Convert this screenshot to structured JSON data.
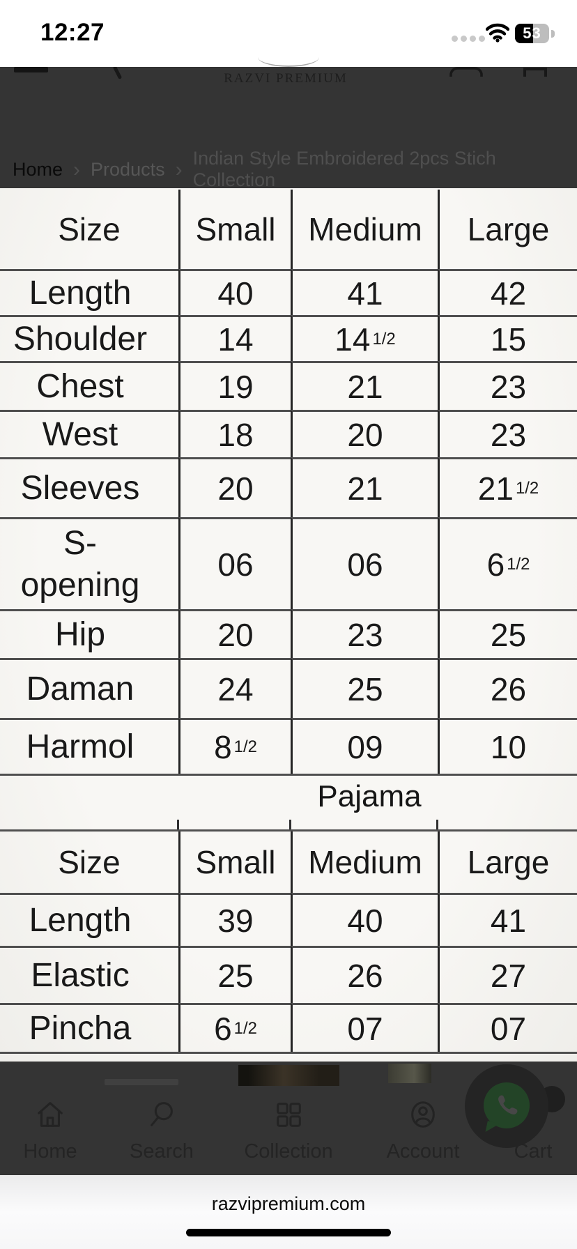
{
  "status_bar": {
    "time": "12:27",
    "battery_percent": "53",
    "cellular_icon": "signal-dots",
    "wifi_icon": "wifi"
  },
  "header": {
    "brand": "RAZVI PREMIUM",
    "menu_icon": "hamburger-menu",
    "search_icon": "search",
    "bag_icon": "shopping-bag",
    "cart_icon": "cart-box"
  },
  "breadcrumb": {
    "separator": "›",
    "items": [
      "Home",
      "Products",
      "Indian Style Embroidered 2pcs Stich Collection"
    ]
  },
  "size_chart": {
    "tables": [
      {
        "name": "kurta-size-chart",
        "columns": [
          "Size",
          "Small",
          "Medium",
          "Large"
        ],
        "rows": [
          {
            "label": "Length",
            "values": [
              "40",
              "41",
              "42"
            ]
          },
          {
            "label": "Shoulder",
            "values": [
              "14",
              "14^1/2",
              "15"
            ]
          },
          {
            "label": "Chest",
            "values": [
              "19",
              "21",
              "23"
            ]
          },
          {
            "label": "West",
            "values": [
              "18",
              "20",
              "23"
            ]
          },
          {
            "label": "Sleeves",
            "values": [
              "20",
              "21",
              "21^1/2"
            ]
          },
          {
            "label": "S-\nopening",
            "values": [
              "06",
              "06",
              "6^1/2"
            ]
          },
          {
            "label": "Hip",
            "values": [
              "20",
              "23",
              "25"
            ]
          },
          {
            "label": "Daman",
            "values": [
              "24",
              "25",
              "26"
            ]
          },
          {
            "label": "Harmol",
            "values": [
              "8^1/2",
              "09",
              "10"
            ]
          }
        ]
      },
      {
        "name": "pajama-size-chart",
        "heading": "Pajama",
        "columns": [
          "Size",
          "Small",
          "Medium",
          "Large"
        ],
        "rows": [
          {
            "label": "Length",
            "values": [
              "39",
              "40",
              "41"
            ]
          },
          {
            "label": "Elastic",
            "values": [
              "25",
              "26",
              "27"
            ]
          },
          {
            "label": "Pincha",
            "values": [
              "6^1/2",
              "07",
              "07"
            ]
          }
        ]
      }
    ]
  },
  "bottom_nav": {
    "items": [
      {
        "icon": "home-icon",
        "label": "Home"
      },
      {
        "icon": "search-icon",
        "label": "Search"
      },
      {
        "icon": "collection-icon",
        "label": "Collection"
      },
      {
        "icon": "account-icon",
        "label": "Account"
      },
      {
        "icon": "cart-icon",
        "label": "Cart"
      }
    ]
  },
  "whatsapp": {
    "icon": "whatsapp-icon",
    "color": "#234427"
  },
  "footer": {
    "domain": "razvipremium.com"
  },
  "colors": {
    "dim_background": "#343434",
    "table_background": "#f5f4f1",
    "whatsapp_green": "#234427"
  }
}
